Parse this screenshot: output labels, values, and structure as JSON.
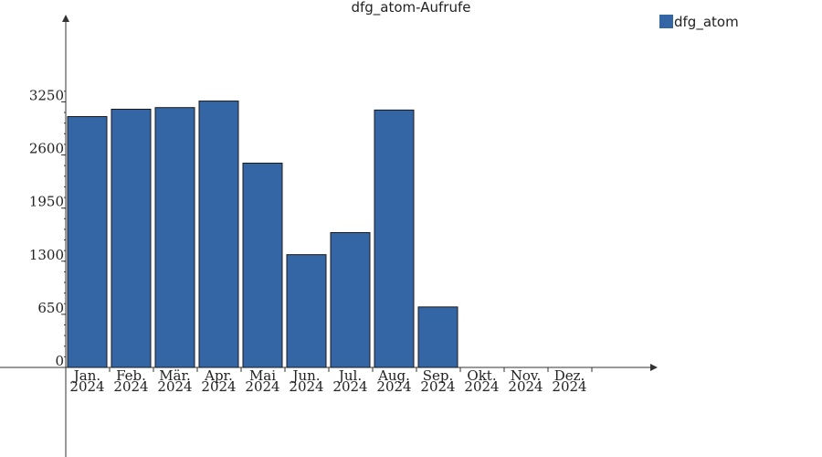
{
  "chart_data": {
    "type": "bar",
    "title": "dfg_atom-Aufrufe",
    "categories": [
      [
        "Jan.",
        "2024"
      ],
      [
        "Feb.",
        "2024"
      ],
      [
        "Mär.",
        "2024"
      ],
      [
        "Apr.",
        "2024"
      ],
      [
        "Mai",
        "2024"
      ],
      [
        "Jun.",
        "2024"
      ],
      [
        "Jul.",
        "2024"
      ],
      [
        "Aug.",
        "2024"
      ],
      [
        "Sep.",
        "2024"
      ],
      [
        "Okt.",
        "2024"
      ],
      [
        "Nov.",
        "2024"
      ],
      [
        "Dez.",
        "2024"
      ]
    ],
    "series": [
      {
        "name": "dfg_atom",
        "color": "#3465a4",
        "values": [
          3070,
          3160,
          3180,
          3260,
          2500,
          1380,
          1650,
          3150,
          740,
          0,
          0,
          0
        ]
      }
    ],
    "yticks": [
      0,
      650,
      1300,
      1950,
      2600,
      3250
    ],
    "ylim": [
      -100,
      4350
    ],
    "legend_position": "top-right",
    "grid": false
  }
}
